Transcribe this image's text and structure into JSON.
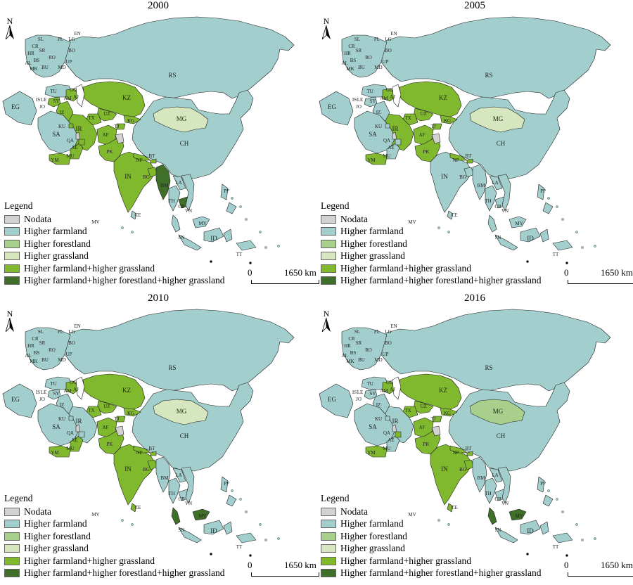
{
  "colors": {
    "nodata": "#d2d2d2",
    "farmland": "#a2cfcd",
    "forestland": "#a8cf8c",
    "grassland": "#d6e7bf",
    "farm_grass": "#80b92e",
    "farm_forest_grass": "#3f6f28",
    "water": "#ffffff",
    "border": "#1e1e1e"
  },
  "legend": {
    "title": "Legend",
    "items": [
      {
        "label": "Nodata",
        "key": "nodata"
      },
      {
        "label": "Higher farmland",
        "key": "farmland"
      },
      {
        "label": "Higher forestland",
        "key": "forestland"
      },
      {
        "label": "Higher grassland",
        "key": "grassland"
      },
      {
        "label": "Higher farmland+higher grassland",
        "key": "farm_grass"
      },
      {
        "label": "Higher farmland+higher forestland+higher grassland",
        "key": "farm_forest_grass"
      }
    ]
  },
  "scale": {
    "zero": "0",
    "distance": "1650 km"
  },
  "north_label": "N",
  "panels": [
    {
      "year": "2000",
      "regions": {
        "RS": "farmland",
        "CH": "farmland",
        "MG": "grassland",
        "KZ": "farm_grass",
        "UZ": "farm_grass",
        "TX": "farm_grass",
        "KG": "farm_grass",
        "TJ": "farm_grass",
        "IR": "farm_grass",
        "AF": "farm_grass",
        "PK": "farm_grass",
        "IN": "farm_grass",
        "NP": "farm_grass",
        "BT": "farm_grass",
        "BG": "farm_grass",
        "BM": "farm_forest_grass",
        "TH": "farmland",
        "LA": "farmland",
        "CB": "farm_forest_grass",
        "VN": "farmland",
        "MY": "farmland",
        "ID": "farmland",
        "PP": "farmland",
        "TU": "farmland",
        "SY": "farm_grass",
        "IZ": "farm_grass",
        "SA": "farmland",
        "YM": "farm_grass",
        "MU": "farm_grass",
        "EG": "farmland",
        "KW": "farm_grass",
        "QA": "nodata",
        "AE": "farm_grass",
        "CE": "farmland",
        "EU": "farmland",
        "CAU": "farm_grass",
        "KASH": "nodata"
      },
      "labels": [
        "RS",
        "CH",
        "MG",
        "KZ",
        "UZ",
        "TX",
        "KG",
        "TJ",
        "IR",
        "AF",
        "PK",
        "IN",
        "NP",
        "BT",
        "BG",
        "BM",
        "TH",
        "LA",
        "CB",
        "VN",
        "SA",
        "YM",
        "MU",
        "EG",
        "TU",
        "SY",
        "IZ",
        "IS",
        "LE",
        "JO",
        "KU",
        "QA",
        "AE",
        "AM",
        "GG",
        "AJ",
        "CE",
        "MV",
        "ID",
        "SN",
        "MY",
        "PP",
        "TT",
        "EN",
        "SL",
        "PL",
        "LG",
        "UP",
        "BO",
        "RO",
        "MD",
        "BU",
        "CR",
        "HR",
        "BS",
        "SR",
        "MK",
        "AL"
      ]
    },
    {
      "year": "2005",
      "regions": {
        "RS": "farmland",
        "CH": "farmland",
        "MG": "grassland",
        "KZ": "farm_grass",
        "UZ": "farm_grass",
        "TX": "farm_grass",
        "KG": "farm_grass",
        "TJ": "farm_grass",
        "IR": "farm_grass",
        "AF": "farm_grass",
        "PK": "farm_grass",
        "IN": "farmland",
        "NP": "farm_grass",
        "BT": "farm_grass",
        "BG": "farmland",
        "BM": "farmland",
        "TH": "farmland",
        "LA": "farmland",
        "CB": "farmland",
        "VN": "farmland",
        "MY": "farmland",
        "ID": "farmland",
        "PP": "farmland",
        "TU": "farmland",
        "SY": "farmland",
        "IZ": "farmland",
        "SA": "farmland",
        "YM": "farm_grass",
        "MU": "farmland",
        "EG": "farmland",
        "KW": "farmland",
        "QA": "nodata",
        "AE": "farmland",
        "CE": "farmland",
        "EU": "farmland",
        "CAU": "farm_grass",
        "KASH": "nodata"
      },
      "labels": [
        "RS",
        "CH",
        "MG",
        "KZ",
        "UZ",
        "TX",
        "KG",
        "TJ",
        "IR",
        "AF",
        "PK",
        "IN",
        "NP",
        "BT",
        "BG",
        "BM",
        "TH",
        "LA",
        "CB",
        "VN",
        "SA",
        "YM",
        "MU",
        "EG",
        "TU",
        "SY",
        "IZ",
        "IS",
        "LE",
        "JO",
        "KU",
        "QA",
        "AE",
        "AM",
        "GG",
        "AJ",
        "CE",
        "MV",
        "ID",
        "SN",
        "MY",
        "PP",
        "TT",
        "EN",
        "SL",
        "PL",
        "LG",
        "UP",
        "BO",
        "RO",
        "MD",
        "BU",
        "CR",
        "HR",
        "BS",
        "SR",
        "MK",
        "AL"
      ]
    },
    {
      "year": "2010",
      "regions": {
        "RS": "farmland",
        "CH": "farmland",
        "MG": "grassland",
        "KZ": "farm_grass",
        "UZ": "farm_grass",
        "TX": "farm_grass",
        "KG": "farm_grass",
        "TJ": "farm_grass",
        "IR": "farmland",
        "AF": "farm_grass",
        "PK": "farm_grass",
        "IN": "farm_grass",
        "NP": "farm_grass",
        "BT": "farm_grass",
        "BG": "farm_grass",
        "BM": "farmland",
        "TH": "farmland",
        "LA": "farmland",
        "CB": "farmland",
        "VN": "farmland",
        "MY": "farm_forest_grass",
        "ID": "farmland",
        "PP": "farmland",
        "TU": "farmland",
        "SY": "farmland",
        "IZ": "farmland",
        "SA": "farmland",
        "YM": "farm_grass",
        "MU": "farm_grass",
        "EG": "farmland",
        "KW": "farmland",
        "QA": "nodata",
        "AE": "farmland",
        "CE": "farm_grass",
        "EU": "farmland",
        "CAU": "farm_grass",
        "KASH": "nodata"
      },
      "labels": [
        "RS",
        "CH",
        "MG",
        "KZ",
        "UZ",
        "TX",
        "KG",
        "TJ",
        "IR",
        "AF",
        "PK",
        "IN",
        "NP",
        "BT",
        "BG",
        "BM",
        "TH",
        "LA",
        "CB",
        "VN",
        "SA",
        "YM",
        "MU",
        "EG",
        "TU",
        "SY",
        "IZ",
        "IS",
        "LE",
        "JO",
        "KU",
        "QA",
        "AE",
        "AM",
        "GG",
        "AJ",
        "CE",
        "MV",
        "ID",
        "SN",
        "MY",
        "PP",
        "TT",
        "EN",
        "SL",
        "PL",
        "LG",
        "UP",
        "BO",
        "RO",
        "MD",
        "BU",
        "CR",
        "HR",
        "BS",
        "SR",
        "MK",
        "AL"
      ]
    },
    {
      "year": "2016",
      "regions": {
        "RS": "farmland",
        "CH": "farmland",
        "MG": "forestland",
        "KZ": "farm_grass",
        "UZ": "farm_grass",
        "TX": "farm_grass",
        "KG": "farm_grass",
        "TJ": "farm_grass",
        "IR": "farmland",
        "AF": "farm_grass",
        "PK": "farm_grass",
        "IN": "farm_grass",
        "NP": "farm_grass",
        "BT": "farm_grass",
        "BG": "farm_grass",
        "BM": "farmland",
        "TH": "farmland",
        "LA": "farmland",
        "CB": "farmland",
        "VN": "farmland",
        "MY": "farm_forest_grass",
        "ID": "farmland",
        "PP": "farmland",
        "TU": "farmland",
        "SY": "farmland",
        "IZ": "farmland",
        "SA": "farmland",
        "YM": "farm_grass",
        "MU": "farmland",
        "EG": "farmland",
        "KW": "farmland",
        "QA": "nodata",
        "AE": "farm_grass",
        "CE": "farm_grass",
        "EU": "farmland",
        "CAU": "farm_grass",
        "KASH": "nodata"
      },
      "labels": [
        "RS",
        "CH",
        "MG",
        "KZ",
        "UZ",
        "TX",
        "KG",
        "TJ",
        "IR",
        "AF",
        "PK",
        "IN",
        "NP",
        "BT",
        "BG",
        "BM",
        "TH",
        "LA",
        "CB",
        "VN",
        "SA",
        "YM",
        "MU",
        "EG",
        "TU",
        "SY",
        "IZ",
        "IS",
        "LE",
        "JO",
        "KU",
        "QA",
        "AE",
        "AM",
        "GG",
        "AJ",
        "CE",
        "MV",
        "ID",
        "SN",
        "MY",
        "PP",
        "TT",
        "EN",
        "SL",
        "PL",
        "LG",
        "UP",
        "BO",
        "RO",
        "MD",
        "BU",
        "CR",
        "HR",
        "BS",
        "SR",
        "MK",
        "AL"
      ]
    }
  ]
}
